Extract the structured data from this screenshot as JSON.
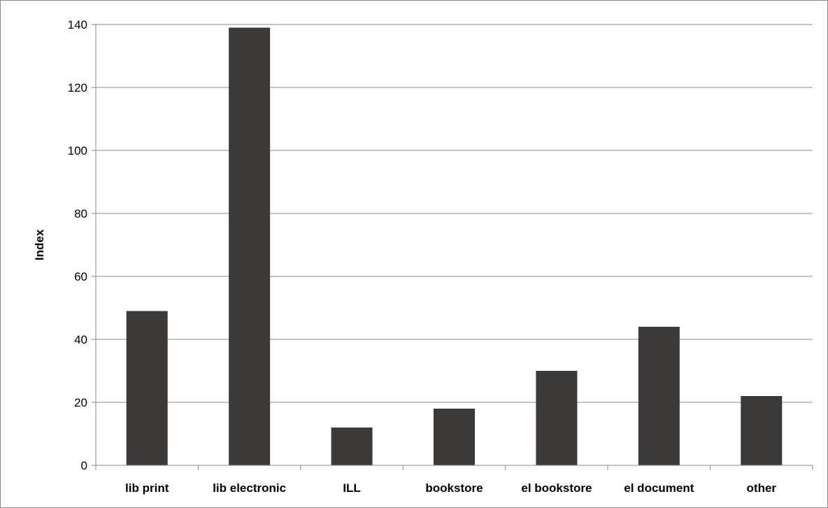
{
  "chart_data": {
    "type": "bar",
    "title": "",
    "xlabel": "",
    "ylabel": "Index",
    "categories": [
      "lib print",
      "lib electronic",
      "ILL",
      "bookstore",
      "el bookstore",
      "el document",
      "other"
    ],
    "values": [
      49,
      139,
      12,
      18,
      30,
      44,
      22
    ],
    "ylim": [
      0,
      140
    ],
    "yticks": [
      0,
      20,
      40,
      60,
      80,
      100,
      120,
      140
    ],
    "grid": true,
    "legend": "none",
    "bar_color": "#3b3a38",
    "grid_color": "#8a8a8a",
    "axis_color": "#8a8a8a"
  }
}
